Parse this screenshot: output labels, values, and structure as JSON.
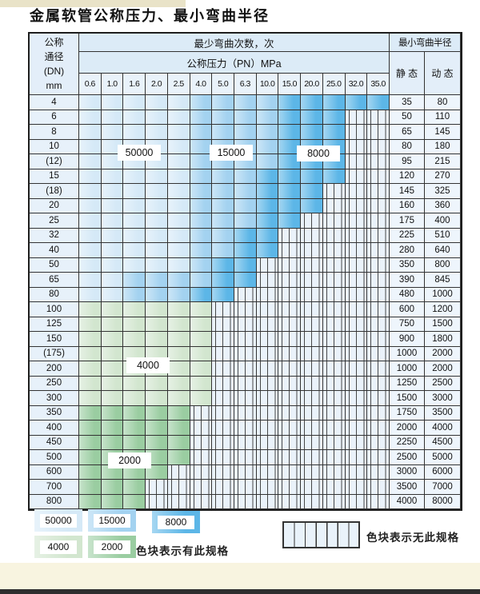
{
  "title": "金属软管公称压力、最小弯曲半径",
  "table": {
    "header": {
      "dn_label_lines": [
        "公称",
        "通径",
        "(DN)",
        "mm"
      ],
      "bend_cycles_label": "最少弯曲次数，次",
      "pressure_label": "公称压力（PN）MPa",
      "pressure_values": [
        "0.6",
        "1.0",
        "1.6",
        "2.0",
        "2.5",
        "4.0",
        "5.0",
        "6.3",
        "10.0",
        "15.0",
        "20.0",
        "25.0",
        "32.0",
        "35.0"
      ],
      "radius_label": "最小弯曲半径",
      "static_label": "静 态",
      "dynamic_label": "动 态"
    },
    "zone_colors": {
      "A": {
        "value": "50000",
        "color": "#d5e9f7"
      },
      "B": {
        "value": "15000",
        "color": "#a3d2f0"
      },
      "C": {
        "value": "8000",
        "color": "#5cb6e7"
      },
      "D": {
        "value": "4000",
        "color": "#d2e6cf"
      },
      "E": {
        "value": "2000",
        "color": "#9acda1"
      }
    },
    "overlay_labels": [
      {
        "text": "50000"
      },
      {
        "text": "15000"
      },
      {
        "text": "8000"
      },
      {
        "text": "4000"
      },
      {
        "text": "2000"
      }
    ],
    "rows": [
      {
        "dn": "4",
        "zones": "AAAAABBBBCCCCC",
        "static": "35",
        "dynamic": "80"
      },
      {
        "dn": "6",
        "zones": "AAAAABBBBCCCXX",
        "static": "50",
        "dynamic": "110"
      },
      {
        "dn": "8",
        "zones": "AAAAABBBBCCCXX",
        "static": "65",
        "dynamic": "145"
      },
      {
        "dn": "10",
        "zones": "AAAAABBBBCCCXX",
        "static": "80",
        "dynamic": "180"
      },
      {
        "dn": "(12)",
        "zones": "AAAAABBBBCCCXX",
        "static": "95",
        "dynamic": "215"
      },
      {
        "dn": "15",
        "zones": "AAAAABBBCCCCXX",
        "static": "120",
        "dynamic": "270"
      },
      {
        "dn": "(18)",
        "zones": "AAAAABBBCCCXXX",
        "static": "145",
        "dynamic": "325"
      },
      {
        "dn": "20",
        "zones": "AAAAABBBCCCXXX",
        "static": "160",
        "dynamic": "360"
      },
      {
        "dn": "25",
        "zones": "AAAAABBBCCXXXX",
        "static": "175",
        "dynamic": "400"
      },
      {
        "dn": "32",
        "zones": "AAAAABBCCXXXXX",
        "static": "225",
        "dynamic": "510"
      },
      {
        "dn": "40",
        "zones": "AAAAABBCCXXXXX",
        "static": "280",
        "dynamic": "640"
      },
      {
        "dn": "50",
        "zones": "AAAAABCCXXXXXX",
        "static": "350",
        "dynamic": "800"
      },
      {
        "dn": "65",
        "zones": "AABBBBCCXXXXXX",
        "static": "390",
        "dynamic": "845"
      },
      {
        "dn": "80",
        "zones": "AABBBCCXXXXXXX",
        "static": "480",
        "dynamic": "1000"
      },
      {
        "dn": "100",
        "zones": "DDDDDDXXXXXXXX",
        "static": "600",
        "dynamic": "1200"
      },
      {
        "dn": "125",
        "zones": "DDDDDDXXXXXXXX",
        "static": "750",
        "dynamic": "1500"
      },
      {
        "dn": "150",
        "zones": "DDDDDDXXXXXXXX",
        "static": "900",
        "dynamic": "1800"
      },
      {
        "dn": "(175)",
        "zones": "DDDDDDXXXXXXXX",
        "static": "1000",
        "dynamic": "2000"
      },
      {
        "dn": "200",
        "zones": "DDDDDDXXXXXXXX",
        "static": "1000",
        "dynamic": "2000"
      },
      {
        "dn": "250",
        "zones": "DDDDDDXXXXXXXX",
        "static": "1250",
        "dynamic": "2500"
      },
      {
        "dn": "300",
        "zones": "DDDDDDXXXXXXXX",
        "static": "1500",
        "dynamic": "3000"
      },
      {
        "dn": "350",
        "zones": "EEEEEXXXXXXXXX",
        "static": "1750",
        "dynamic": "3500"
      },
      {
        "dn": "400",
        "zones": "EEEEEXXXXXXXXX",
        "static": "2000",
        "dynamic": "4000"
      },
      {
        "dn": "450",
        "zones": "EEEEEXXXXXXXXX",
        "static": "2250",
        "dynamic": "4500"
      },
      {
        "dn": "500",
        "zones": "EEEEEXXXXXXXXX",
        "static": "2500",
        "dynamic": "5000"
      },
      {
        "dn": "600",
        "zones": "EEEEXXXXXXXXXX",
        "static": "3000",
        "dynamic": "6000"
      },
      {
        "dn": "700",
        "zones": "EEEXXXXXXXXXXX",
        "static": "3500",
        "dynamic": "7000"
      },
      {
        "dn": "800",
        "zones": "EEEXXXXXXXXXXX",
        "static": "4000",
        "dynamic": "8000"
      }
    ]
  },
  "legend": {
    "has_spec_items": [
      {
        "value": "50000",
        "zone": "A"
      },
      {
        "value": "15000",
        "zone": "B"
      },
      {
        "value": "8000",
        "zone": "C"
      },
      {
        "value": "4000",
        "zone": "D"
      },
      {
        "value": "2000",
        "zone": "E"
      }
    ],
    "has_spec_text": "色块表示有此规格",
    "no_spec_text": "色块表示无此规格"
  }
}
